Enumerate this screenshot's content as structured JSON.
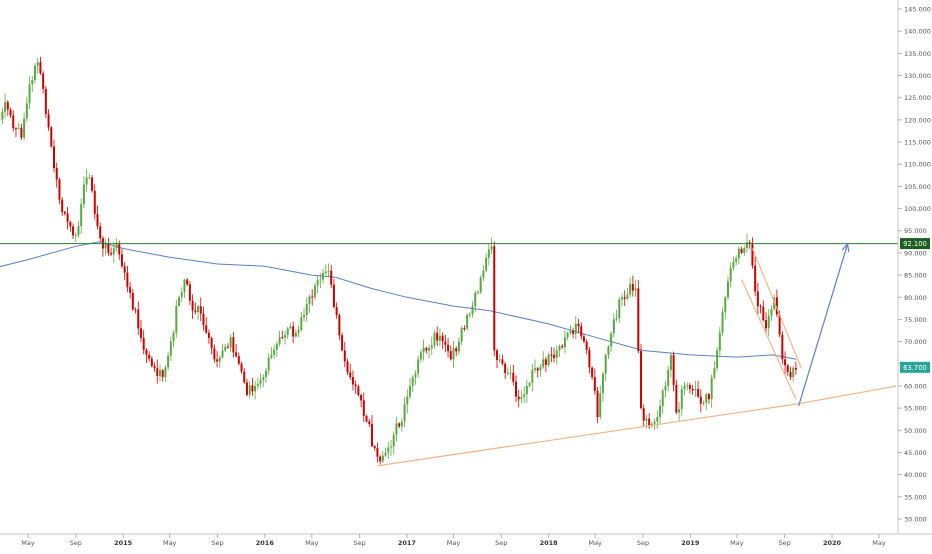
{
  "chart_data": {
    "type": "candlestick",
    "title": "",
    "xlabel": "",
    "ylabel": "",
    "ylim": [
      27.5,
      147.5
    ],
    "y_ticks": [
      30,
      35,
      40,
      45,
      50,
      55,
      60,
      65,
      70,
      75,
      80,
      85,
      90,
      95,
      100,
      105,
      110,
      115,
      120,
      125,
      130,
      135,
      140,
      145
    ],
    "y_tick_labels": [
      "30.000",
      "35.000",
      "40.000",
      "45.000",
      "50.000",
      "55.000",
      "60.000",
      "65.000",
      "70.000",
      "75.000",
      "80.000",
      "85.000",
      "90.000",
      "95.000",
      "100.000",
      "105.000",
      "110.000",
      "115.000",
      "120.000",
      "125.000",
      "130.000",
      "135.000",
      "140.000",
      "145.000"
    ],
    "x_tick_labels": [
      "May",
      "Sep",
      "2015",
      "May",
      "Sep",
      "2016",
      "May",
      "Sep",
      "2017",
      "May",
      "Sep",
      "2018",
      "May",
      "Sep",
      "2019",
      "May",
      "Sep",
      "2020",
      "May"
    ],
    "x_tick_dates": [
      "2014-05",
      "2014-09",
      "2015-01",
      "2015-05",
      "2015-09",
      "2016-01",
      "2016-05",
      "2016-09",
      "2017-01",
      "2017-05",
      "2017-09",
      "2018-01",
      "2018-05",
      "2018-09",
      "2019-01",
      "2019-05",
      "2019-09",
      "2020-01",
      "2020-05"
    ],
    "price_label": "63.700",
    "resistance_label": "92.100",
    "resistance_level": 92.1,
    "colors": {
      "up": "#5aa842",
      "down": "#cc0000",
      "moving_average": "#5b7fc3",
      "resistance": "#2e7d32",
      "trendline": "#f4b183",
      "projection": "#5b7fc3",
      "price_tag": "#26a69a",
      "resistance_tag": "#1b5e20"
    },
    "keypoints": [
      [
        "2014-01-20",
        114
      ],
      [
        "2014-02-10",
        120
      ],
      [
        "2014-03-03",
        124
      ],
      [
        "2014-03-31",
        118
      ],
      [
        "2014-04-14",
        116
      ],
      [
        "2014-05-05",
        128
      ],
      [
        "2014-05-26",
        133
      ],
      [
        "2014-06-09",
        127
      ],
      [
        "2014-06-30",
        114
      ],
      [
        "2014-07-21",
        102
      ],
      [
        "2014-08-11",
        97
      ],
      [
        "2014-09-01",
        94
      ],
      [
        "2014-09-15",
        101
      ],
      [
        "2014-09-29",
        107
      ],
      [
        "2014-10-13",
        104
      ],
      [
        "2014-10-27",
        96
      ],
      [
        "2014-11-10",
        91
      ],
      [
        "2014-11-24",
        90
      ],
      [
        "2014-12-15",
        92
      ],
      [
        "2014-12-29",
        87
      ],
      [
        "2015-01-19",
        81
      ],
      [
        "2015-02-09",
        73
      ],
      [
        "2015-03-02",
        67
      ],
      [
        "2015-03-23",
        64
      ],
      [
        "2015-04-13",
        62
      ],
      [
        "2015-05-04",
        70
      ],
      [
        "2015-05-25",
        80
      ],
      [
        "2015-06-08",
        84
      ],
      [
        "2015-06-29",
        77
      ],
      [
        "2015-07-13",
        78
      ],
      [
        "2015-08-03",
        72
      ],
      [
        "2015-08-24",
        66
      ],
      [
        "2015-09-14",
        68
      ],
      [
        "2015-10-05",
        71
      ],
      [
        "2015-10-26",
        65
      ],
      [
        "2015-11-16",
        58
      ],
      [
        "2015-12-07",
        60
      ],
      [
        "2015-12-28",
        62
      ],
      [
        "2016-01-18",
        67
      ],
      [
        "2016-02-08",
        71
      ],
      [
        "2016-02-29",
        73
      ],
      [
        "2016-03-21",
        72
      ],
      [
        "2016-04-11",
        76
      ],
      [
        "2016-05-02",
        80
      ],
      [
        "2016-05-23",
        84
      ],
      [
        "2016-06-13",
        86
      ],
      [
        "2016-07-04",
        76
      ],
      [
        "2016-07-18",
        68
      ],
      [
        "2016-08-08",
        62
      ],
      [
        "2016-08-29",
        58
      ],
      [
        "2016-09-19",
        52
      ],
      [
        "2016-10-10",
        46
      ],
      [
        "2016-10-24",
        43
      ],
      [
        "2016-11-07",
        45
      ],
      [
        "2016-11-28",
        49
      ],
      [
        "2016-12-19",
        52
      ],
      [
        "2017-01-09",
        60
      ],
      [
        "2017-01-30",
        66
      ],
      [
        "2017-02-20",
        68
      ],
      [
        "2017-03-13",
        72
      ],
      [
        "2017-04-03",
        70
      ],
      [
        "2017-04-24",
        66
      ],
      [
        "2017-05-15",
        70
      ],
      [
        "2017-06-05",
        76
      ],
      [
        "2017-06-26",
        81
      ],
      [
        "2017-07-17",
        86
      ],
      [
        "2017-08-07",
        91.5
      ],
      [
        "2017-08-14",
        68
      ],
      [
        "2017-09-04",
        65
      ],
      [
        "2017-09-25",
        63
      ],
      [
        "2017-10-16",
        57
      ],
      [
        "2017-11-06",
        60
      ],
      [
        "2017-11-27",
        64
      ],
      [
        "2017-12-18",
        66
      ],
      [
        "2018-01-08",
        67
      ],
      [
        "2018-01-29",
        69
      ],
      [
        "2018-02-19",
        72
      ],
      [
        "2018-03-12",
        74
      ],
      [
        "2018-04-02",
        70
      ],
      [
        "2018-04-23",
        62
      ],
      [
        "2018-05-07",
        53
      ],
      [
        "2018-05-28",
        67
      ],
      [
        "2018-06-18",
        75
      ],
      [
        "2018-07-09",
        80
      ],
      [
        "2018-07-30",
        83
      ],
      [
        "2018-08-13",
        82
      ],
      [
        "2018-08-27",
        55
      ],
      [
        "2018-09-17",
        51
      ],
      [
        "2018-10-08",
        53
      ],
      [
        "2018-10-29",
        60
      ],
      [
        "2018-11-12",
        67
      ],
      [
        "2018-11-26",
        54
      ],
      [
        "2018-12-17",
        60
      ],
      [
        "2019-01-07",
        59
      ],
      [
        "2019-01-28",
        56
      ],
      [
        "2019-02-18",
        57
      ],
      [
        "2019-03-11",
        68
      ],
      [
        "2019-04-01",
        80
      ],
      [
        "2019-04-22",
        88
      ],
      [
        "2019-05-13",
        90
      ],
      [
        "2019-06-03",
        92
      ],
      [
        "2019-06-24",
        78
      ],
      [
        "2019-07-15",
        73
      ],
      [
        "2019-08-05",
        80
      ],
      [
        "2019-08-26",
        66
      ],
      [
        "2019-09-16",
        62
      ],
      [
        "2019-09-30",
        63.7
      ]
    ],
    "moving_average": [
      [
        "2014-01-06",
        86
      ],
      [
        "2014-05-01",
        88.5
      ],
      [
        "2014-09-01",
        91.5
      ],
      [
        "2014-11-01",
        92.5
      ],
      [
        "2015-01-01",
        91
      ],
      [
        "2015-05-01",
        89
      ],
      [
        "2015-09-01",
        87.5
      ],
      [
        "2016-01-01",
        87
      ],
      [
        "2016-05-01",
        85
      ],
      [
        "2016-07-01",
        84.5
      ],
      [
        "2016-10-01",
        82
      ],
      [
        "2017-01-01",
        80
      ],
      [
        "2017-05-01",
        78
      ],
      [
        "2017-08-01",
        77
      ],
      [
        "2018-01-01",
        74
      ],
      [
        "2018-05-01",
        71
      ],
      [
        "2018-09-01",
        68
      ],
      [
        "2019-01-01",
        67
      ],
      [
        "2019-05-01",
        66.5
      ],
      [
        "2019-08-01",
        67
      ],
      [
        "2019-10-01",
        66
      ]
    ],
    "trendline": [
      [
        "2016-10-17",
        42
      ],
      [
        "2019-10-07",
        56
      ],
      [
        "2020-06-15",
        60
      ]
    ],
    "falling_channel_upper": [
      [
        "2019-06-10",
        91
      ],
      [
        "2019-10-14",
        64
      ]
    ],
    "falling_channel_lower": [
      [
        "2019-05-13",
        84
      ],
      [
        "2019-09-30",
        57
      ]
    ],
    "projection_arrow": [
      [
        "2019-10-07",
        55.5
      ],
      [
        "2020-02-10",
        92
      ]
    ]
  }
}
